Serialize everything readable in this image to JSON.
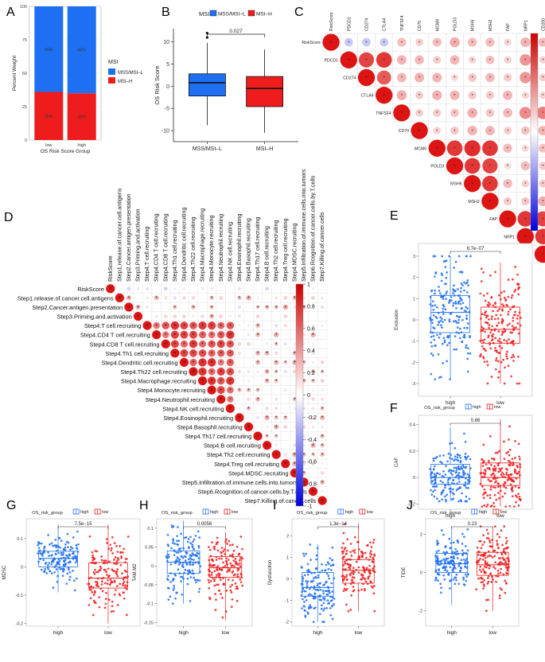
{
  "panel_letters": {
    "A": "A",
    "B": "B",
    "C": "C",
    "D": "D",
    "E": "E",
    "F": "F",
    "G": "G",
    "H": "H",
    "I": "I",
    "J": "J"
  },
  "colors": {
    "blue": "#1e6ff2",
    "red": "#ee1c1c",
    "grid": "#d9d9d9",
    "axis": "#555555"
  },
  "chart_data": [
    {
      "id": "A",
      "type": "bar",
      "stacked": true,
      "categories": [
        "low",
        "high"
      ],
      "series": [
        {
          "name": "MSI–H",
          "values": [
            36,
            35
          ],
          "labels": [
            "36%",
            "35%"
          ],
          "color": "#ee1c1c"
        },
        {
          "name": "MSS/MSI–L",
          "values": [
            64,
            65
          ],
          "labels": [
            "64%",
            "65%"
          ],
          "color": "#1e6ff2"
        }
      ],
      "ylabel": "Percent Weight",
      "xlabel": "OS Risk Score Group",
      "yticks": [
        0,
        25,
        50,
        75,
        100
      ],
      "ylim": [
        0,
        100
      ],
      "legend_title": "MSI",
      "legend_items": [
        "MSS/MSI–L",
        "MSI–H"
      ]
    },
    {
      "id": "B",
      "type": "box",
      "categories": [
        "MSS/MSI–L",
        "MSI–H"
      ],
      "colors": [
        "#1e6ff2",
        "#ee1c1c"
      ],
      "boxes": [
        {
          "min": -8.8,
          "q1": -2.2,
          "median": 0.8,
          "q3": 2.8,
          "max": 9.8,
          "outliers": [
            11,
            12
          ]
        },
        {
          "min": -10.5,
          "q1": -4.6,
          "median": -0.5,
          "q3": 2.2,
          "max": 8.3,
          "outliers": []
        }
      ],
      "ylabel": "OS Risk Score",
      "ylim": [
        -12.5,
        13
      ],
      "yticks": [
        -10,
        -5,
        0,
        5,
        10
      ],
      "p_value": "0.027",
      "legend_title": "MSI",
      "legend_items": [
        "MSS/MSI–L",
        "MSI–H"
      ]
    },
    {
      "id": "C",
      "type": "heatmap",
      "triangle": "upper",
      "labels": [
        "RiskScore",
        "PDCD1",
        "CD274",
        "CTLA4",
        "TNFSF4",
        "CD70",
        "MCM6",
        "POLD3",
        "MSH6",
        "MSH2",
        "FAP",
        "NRP1",
        "CD200"
      ],
      "dense_pairs": [
        [
          1,
          2,
          0.8
        ],
        [
          1,
          3,
          0.85
        ],
        [
          2,
          3,
          0.7
        ],
        [
          6,
          7,
          0.85
        ],
        [
          6,
          8,
          0.9
        ],
        [
          6,
          9,
          0.85
        ],
        [
          7,
          8,
          0.85
        ],
        [
          7,
          9,
          0.8
        ],
        [
          8,
          9,
          0.85
        ],
        [
          10,
          11,
          0.85
        ],
        [
          10,
          12,
          0.8
        ],
        [
          11,
          12,
          0.85
        ],
        [
          1,
          11,
          0.45
        ],
        [
          2,
          11,
          0.45
        ],
        [
          4,
          11,
          0.5
        ],
        [
          4,
          12,
          0.55
        ],
        [
          3,
          4,
          0.35
        ]
      ],
      "neg_pairs": [
        [
          0,
          1
        ],
        [
          0,
          3
        ],
        [
          0,
          2
        ]
      ],
      "colorbar": [
        1,
        0.8,
        0.6,
        0.4,
        0.2,
        0,
        -0.2,
        -0.4,
        -0.6,
        -0.8,
        -1
      ]
    },
    {
      "id": "D",
      "type": "heatmap",
      "triangle": "upper",
      "labels": [
        "RiskScore",
        "Step1.release.of.cancer.cell.antigens",
        "Step2.Cancer.antigen.presentation",
        "Step3.Priming.and.activation",
        "Step4.T cell.recruiting",
        "Step4.CD4 T cell.recruiting",
        "Step4.CD8 T cell.recruiting",
        "Step4.Th1 cell.recruiting",
        "Step4.Dendritic cell.recruiting",
        "Step4.Th22 cell.recruiting",
        "Step4.Macrophage.recruiting",
        "Step4.Monocyte.recruiting",
        "Step4.Neutrophil.recruiting",
        "Step4.NK cell.recruiting",
        "Step4.Eosinophil.recruiting",
        "Step4.Basophil.recruiting",
        "Step4.Th17 cell.recruiting",
        "Step4.B cell.recruiting",
        "Step4.Th2 cell.recruiting",
        "Step4.Treg cell.recruiting",
        "Step4.MDSC.recruiting",
        "Step5.Infiltration.of.immune.cells.into.tumors",
        "Step6.Rcognition.of.cancer.cells.by.T.cells",
        "Step7.Killing.of.cancer.cells"
      ],
      "colorbar": [
        1,
        0.8,
        0.6,
        0.4,
        0.2,
        0,
        -0.2,
        -0.4,
        -0.6,
        -0.8,
        -1
      ]
    },
    {
      "id": "E",
      "type": "box",
      "categories": [
        "high",
        "low"
      ],
      "colors": [
        "#1e6ff2",
        "#ee1c1c"
      ],
      "boxes": [
        {
          "min": -2.8,
          "q1": -0.6,
          "median": 0.35,
          "q3": 1.15,
          "max": 3.0
        },
        {
          "min": -3.0,
          "q1": -1.1,
          "median": -0.45,
          "q3": 0.6,
          "max": 2.7
        }
      ],
      "ylabel": "Exclusion",
      "ylim": [
        -3.6,
        3.6
      ],
      "yticks": [
        -3,
        -2,
        -1,
        0,
        1,
        2,
        3
      ],
      "p_value": "6.7e−07",
      "legend": false
    },
    {
      "id": "F",
      "type": "box",
      "categories": [
        "high",
        "low"
      ],
      "colors": [
        "#1e6ff2",
        "#ee1c1c"
      ],
      "boxes": [
        {
          "min": -0.18,
          "q1": -0.05,
          "median": 0.0,
          "q3": 0.1,
          "max": 0.38
        },
        {
          "min": -0.22,
          "q1": -0.06,
          "median": 0.0,
          "q3": 0.11,
          "max": 0.44
        }
      ],
      "ylabel": "CAF",
      "ylim": [
        -0.24,
        0.47
      ],
      "yticks": [
        -0.2,
        0.0,
        0.2,
        0.4
      ],
      "p_value": "0.86",
      "legend": true,
      "legend_title": "OS_risk_group",
      "legend_items": [
        "high",
        "low"
      ]
    },
    {
      "id": "G",
      "type": "box",
      "categories": [
        "high",
        "low"
      ],
      "colors": [
        "#1e6ff2",
        "#ee1c1c"
      ],
      "boxes": [
        {
          "min": -0.09,
          "q1": 0.0,
          "median": 0.03,
          "q3": 0.055,
          "max": 0.15
        },
        {
          "min": -0.2,
          "q1": -0.075,
          "median": -0.04,
          "q3": 0.015,
          "max": 0.15
        }
      ],
      "ylabel": "MDSC",
      "ylim": [
        -0.21,
        0.17
      ],
      "yticks": [
        -0.2,
        -0.1,
        0.0,
        0.1
      ],
      "p_value": "7.5e−15",
      "legend": true,
      "legend_title": "OS_risk_group",
      "legend_items": [
        "high",
        "low"
      ]
    },
    {
      "id": "H",
      "type": "box",
      "categories": [
        "high",
        "low"
      ],
      "colors": [
        "#1e6ff2",
        "#ee1c1c"
      ],
      "boxes": [
        {
          "min": -0.1,
          "q1": -0.02,
          "median": 0.01,
          "q3": 0.04,
          "max": 0.12
        },
        {
          "min": -0.145,
          "q1": -0.03,
          "median": -0.005,
          "q3": 0.025,
          "max": 0.09
        }
      ],
      "ylabel": "TAM.M2",
      "ylim": [
        -0.16,
        0.125
      ],
      "yticks": [
        -0.15,
        -0.1,
        -0.05,
        0.0,
        0.05,
        0.1
      ],
      "p_value": "0.0056",
      "legend": true,
      "legend_title": "OS_risk_group",
      "legend_items": [
        "high",
        "low"
      ]
    },
    {
      "id": "I",
      "type": "box",
      "categories": [
        "high",
        "low"
      ],
      "colors": [
        "#1e6ff2",
        "#ee1c1c"
      ],
      "boxes": [
        {
          "min": -2.0,
          "q1": -0.8,
          "median": -0.4,
          "q3": 0.3,
          "max": 1.6
        },
        {
          "min": -1.5,
          "q1": -0.2,
          "median": 0.4,
          "q3": 0.9,
          "max": 2.6
        }
      ],
      "ylabel": "Dysfunction",
      "ylim": [
        -2.2,
        2.8
      ],
      "yticks": [
        -2,
        -1,
        0,
        1,
        2
      ],
      "p_value": "1.3e−14",
      "legend": true,
      "legend_title": "OS_risk_group",
      "legend_items": [
        "high",
        "low"
      ]
    },
    {
      "id": "J",
      "type": "box",
      "categories": [
        "high",
        "low"
      ],
      "colors": [
        "#1e6ff2",
        "#ee1c1c"
      ],
      "boxes": [
        {
          "min": -1.7,
          "q1": 0.0,
          "median": 0.45,
          "q3": 1.0,
          "max": 2.4
        },
        {
          "min": -2.0,
          "q1": -0.15,
          "median": 0.4,
          "q3": 1.05,
          "max": 2.4
        }
      ],
      "ylabel": "TIDE",
      "ylim": [
        -2.8,
        2.8
      ],
      "yticks": [
        -2,
        0,
        2
      ],
      "p_value": "0.23",
      "legend": true,
      "legend_title": "OS_risk_group",
      "legend_items": [
        "high",
        "low"
      ]
    }
  ]
}
